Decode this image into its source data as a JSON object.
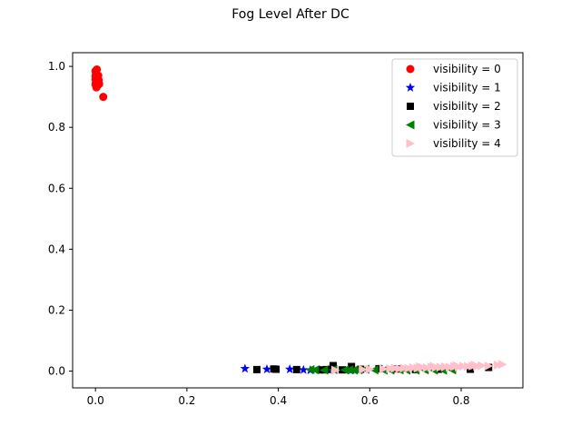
{
  "chart_data": {
    "type": "scatter",
    "title": "Fog Level After DC",
    "xlabel": "",
    "ylabel": "",
    "xlim": [
      -0.05,
      0.935
    ],
    "ylim": [
      -0.055,
      1.045
    ],
    "xticks": [
      0.0,
      0.2,
      0.4,
      0.6,
      0.8
    ],
    "xtick_labels": [
      "0.0",
      "0.2",
      "0.4",
      "0.6",
      "0.8"
    ],
    "yticks": [
      0.0,
      0.2,
      0.4,
      0.6,
      0.8,
      1.0
    ],
    "ytick_labels": [
      "0.0",
      "0.2",
      "0.4",
      "0.6",
      "0.8",
      "1.0"
    ],
    "grid": false,
    "legend_position": "top-right",
    "series": [
      {
        "name": "visibility = 0",
        "color": "#ff0000",
        "marker": "circle",
        "points": [
          [
            0.0,
            0.985
          ],
          [
            0.001,
            0.975
          ],
          [
            0.0,
            0.968
          ],
          [
            0.002,
            0.962
          ],
          [
            0.0,
            0.957
          ],
          [
            0.003,
            0.951
          ],
          [
            0.001,
            0.946
          ],
          [
            0.0,
            0.941
          ],
          [
            0.004,
            0.936
          ],
          [
            0.006,
            0.97
          ],
          [
            0.007,
            0.955
          ],
          [
            0.005,
            0.948
          ],
          [
            0.008,
            0.942
          ],
          [
            0.002,
            0.931
          ],
          [
            0.003,
            0.99
          ],
          [
            0.017,
            0.9
          ]
        ]
      },
      {
        "name": "visibility = 1",
        "color": "#0000ff",
        "marker": "star",
        "points": [
          [
            0.327,
            0.008
          ],
          [
            0.375,
            0.006
          ],
          [
            0.425,
            0.006
          ],
          [
            0.455,
            0.004
          ],
          [
            0.47,
            0.003
          ],
          [
            0.49,
            0.004
          ],
          [
            0.51,
            0.005
          ],
          [
            0.56,
            0.003
          ]
        ]
      },
      {
        "name": "visibility = 2",
        "color": "#000000",
        "marker": "square",
        "points": [
          [
            0.353,
            0.005
          ],
          [
            0.39,
            0.007
          ],
          [
            0.395,
            0.006
          ],
          [
            0.44,
            0.005
          ],
          [
            0.495,
            0.004
          ],
          [
            0.505,
            0.005
          ],
          [
            0.52,
            0.018
          ],
          [
            0.54,
            0.004
          ],
          [
            0.56,
            0.015
          ],
          [
            0.58,
            0.006
          ],
          [
            0.62,
            0.008
          ],
          [
            0.66,
            0.007
          ],
          [
            0.7,
            0.005
          ],
          [
            0.75,
            0.006
          ],
          [
            0.82,
            0.006
          ],
          [
            0.86,
            0.012
          ]
        ]
      },
      {
        "name": "visibility = 3",
        "color": "#008000",
        "marker": "triangle-left",
        "points": [
          [
            0.47,
            0.005
          ],
          [
            0.48,
            0.004
          ],
          [
            0.5,
            0.003
          ],
          [
            0.52,
            0.005
          ],
          [
            0.545,
            0.004
          ],
          [
            0.555,
            0.004
          ],
          [
            0.565,
            0.003
          ],
          [
            0.575,
            0.004
          ],
          [
            0.59,
            0.006
          ],
          [
            0.61,
            0.004
          ],
          [
            0.63,
            0.003
          ],
          [
            0.645,
            0.003
          ],
          [
            0.665,
            0.004
          ],
          [
            0.68,
            0.003
          ],
          [
            0.7,
            0.003
          ],
          [
            0.72,
            0.004
          ],
          [
            0.74,
            0.003
          ],
          [
            0.76,
            0.003
          ],
          [
            0.78,
            0.004
          ]
        ]
      },
      {
        "name": "visibility = 4",
        "color": "#ffc0cb",
        "marker": "triangle-right",
        "points": [
          [
            0.525,
            0.003
          ],
          [
            0.585,
            0.005
          ],
          [
            0.6,
            0.006
          ],
          [
            0.63,
            0.007
          ],
          [
            0.645,
            0.008
          ],
          [
            0.655,
            0.009
          ],
          [
            0.665,
            0.008
          ],
          [
            0.675,
            0.01
          ],
          [
            0.685,
            0.009
          ],
          [
            0.695,
            0.011
          ],
          [
            0.705,
            0.01
          ],
          [
            0.715,
            0.012
          ],
          [
            0.725,
            0.011
          ],
          [
            0.735,
            0.013
          ],
          [
            0.745,
            0.012
          ],
          [
            0.755,
            0.013
          ],
          [
            0.765,
            0.014
          ],
          [
            0.775,
            0.013
          ],
          [
            0.785,
            0.015
          ],
          [
            0.795,
            0.014
          ],
          [
            0.805,
            0.016
          ],
          [
            0.815,
            0.015
          ],
          [
            0.825,
            0.017
          ],
          [
            0.835,
            0.016
          ],
          [
            0.845,
            0.018
          ],
          [
            0.86,
            0.017
          ],
          [
            0.88,
            0.02
          ],
          [
            0.89,
            0.022
          ],
          [
            0.71,
            0.014
          ],
          [
            0.74,
            0.016
          ],
          [
            0.79,
            0.018
          ],
          [
            0.83,
            0.02
          ]
        ]
      }
    ]
  }
}
